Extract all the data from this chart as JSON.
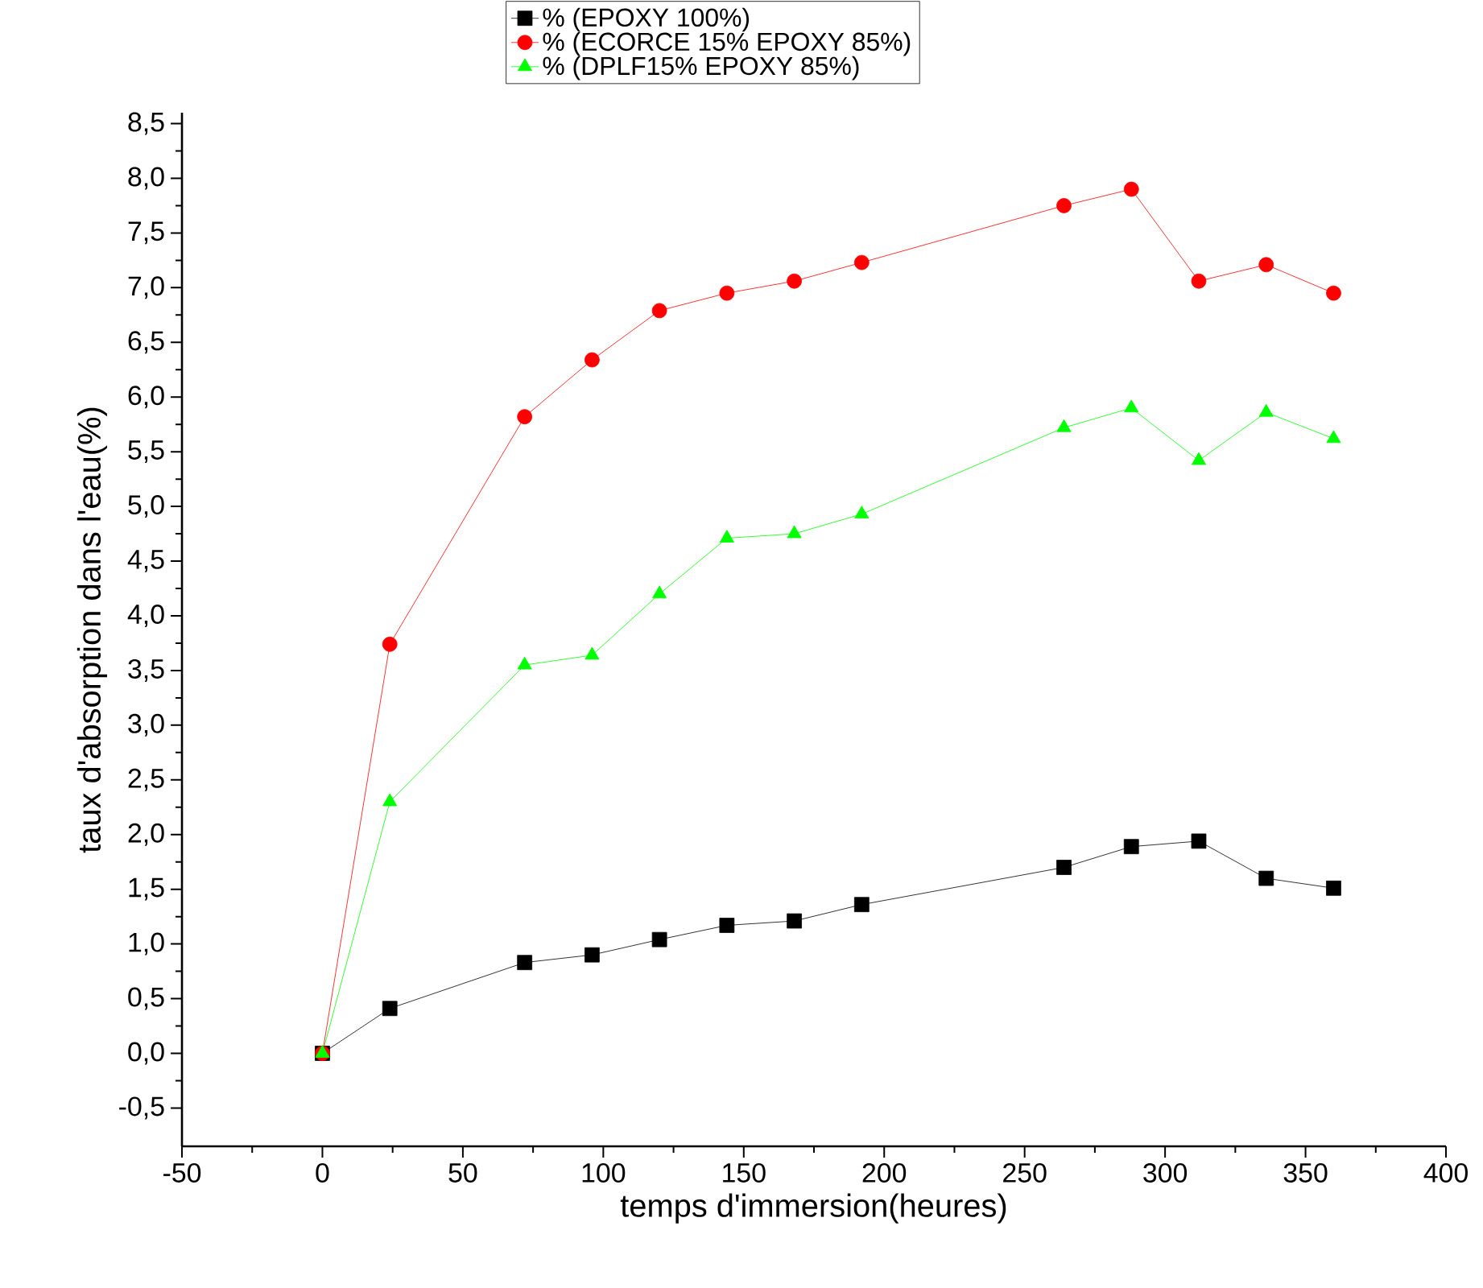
{
  "chart_data": {
    "type": "line",
    "xlabel": "temps d'immersion(heures)",
    "ylabel": "taux d'absorption dans l'eau(%)",
    "x": [
      0,
      24,
      72,
      96,
      120,
      144,
      168,
      192,
      264,
      288,
      312,
      336,
      360
    ],
    "series": [
      {
        "name": "% (EPOXY 100%)",
        "color": "#000000",
        "marker": "square",
        "values": [
          0,
          0.41,
          0.83,
          0.9,
          1.04,
          1.17,
          1.21,
          1.36,
          1.7,
          1.89,
          1.94,
          1.6,
          1.51
        ]
      },
      {
        "name": "% (ECORCE 15% EPOXY 85%)",
        "color": "#ff0000",
        "marker": "circle",
        "values": [
          0,
          3.74,
          5.82,
          6.34,
          6.79,
          6.95,
          7.06,
          7.23,
          7.75,
          7.9,
          7.06,
          7.21,
          6.95
        ]
      },
      {
        "name": "% (DPLF15% EPOXY 85%)",
        "color": "#00ff00",
        "marker": "triangle",
        "values": [
          0,
          2.3,
          3.55,
          3.64,
          4.2,
          4.71,
          4.75,
          4.93,
          5.72,
          5.9,
          5.42,
          5.86,
          5.62
        ]
      }
    ],
    "xlim": [
      -50,
      400
    ],
    "ylim": [
      -0.85,
      8.6
    ],
    "xticks": [
      -50,
      0,
      50,
      100,
      150,
      200,
      250,
      300,
      350,
      400
    ],
    "yticks": [
      {
        "value": -0.5,
        "label": "-0,5"
      },
      {
        "value": 0,
        "label": "0,0"
      },
      {
        "value": 0.5,
        "label": "0,5"
      },
      {
        "value": 1,
        "label": "1,0"
      },
      {
        "value": 1.5,
        "label": "1,5"
      },
      {
        "value": 2,
        "label": "2,0"
      },
      {
        "value": 2.5,
        "label": "2,5"
      },
      {
        "value": 3,
        "label": "3,0"
      },
      {
        "value": 3.5,
        "label": "3,5"
      },
      {
        "value": 4,
        "label": "4,0"
      },
      {
        "value": 4.5,
        "label": "4,5"
      },
      {
        "value": 5,
        "label": "5,0"
      },
      {
        "value": 5.5,
        "label": "5,5"
      },
      {
        "value": 6,
        "label": "6,0"
      },
      {
        "value": 6.5,
        "label": "6,5"
      },
      {
        "value": 7,
        "label": "7,0"
      },
      {
        "value": 7.5,
        "label": "7,5"
      },
      {
        "value": 8,
        "label": "8,0"
      },
      {
        "value": 8.5,
        "label": "8,5"
      }
    ],
    "grid": false,
    "legend": "top",
    "line_style": "solid"
  }
}
